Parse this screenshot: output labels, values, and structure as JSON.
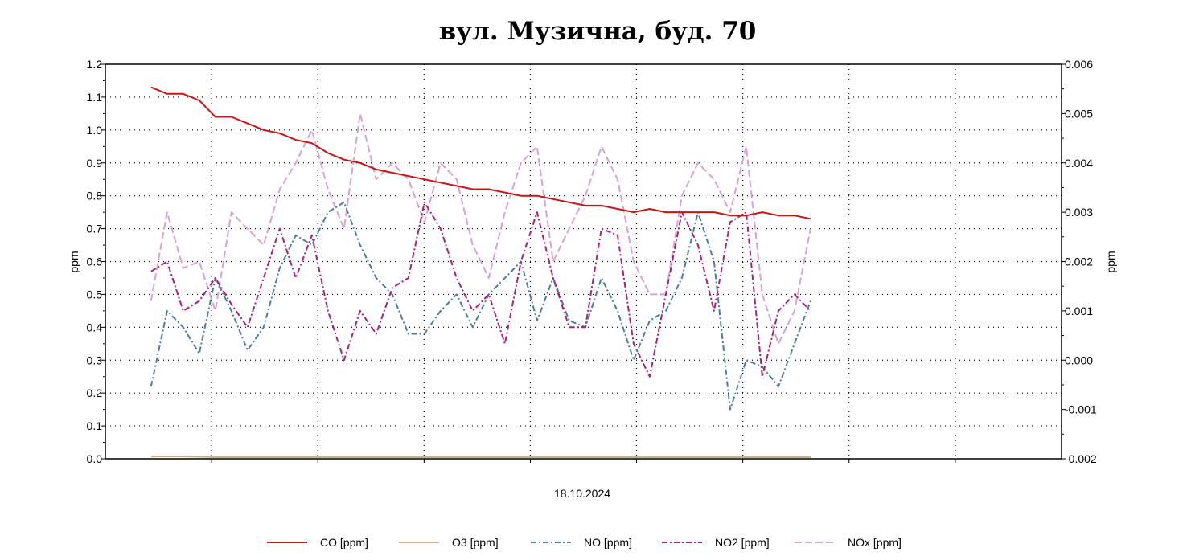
{
  "chart_data": {
    "type": "line",
    "title": "вул. Музична, буд. 70",
    "xlabel": "18.10.2024",
    "ylabel_left": "ppm",
    "ylabel_right": "ppm",
    "ylim_left": [
      0,
      1.2
    ],
    "ylim_right": [
      -0.002,
      0.006
    ],
    "yticks_left": [
      "0.0",
      "0.1",
      "0.2",
      "0.3",
      "0.4",
      "0.5",
      "0.6",
      "0.7",
      "0.8",
      "0.9",
      "1.0",
      "1.1",
      "1.2"
    ],
    "yticks_right": [
      "-0.002",
      "-0.001",
      "0.000",
      "0.001",
      "0.002",
      "0.003",
      "0.004",
      "0.005",
      "0.006"
    ],
    "xlim": [
      0,
      9
    ],
    "x_start": 0.43,
    "x_step": 0.1514,
    "grid": true,
    "legend_position": "bottom",
    "series": [
      {
        "name": "CO [ppm]",
        "color": "#cc1414",
        "dash": "",
        "values": [
          1.13,
          1.11,
          1.11,
          1.09,
          1.04,
          1.04,
          1.02,
          1.0,
          0.99,
          0.97,
          0.96,
          0.93,
          0.91,
          0.9,
          0.88,
          0.87,
          0.86,
          0.85,
          0.84,
          0.83,
          0.82,
          0.82,
          0.81,
          0.8,
          0.8,
          0.79,
          0.78,
          0.77,
          0.77,
          0.76,
          0.75,
          0.76,
          0.75,
          0.75,
          0.75,
          0.75,
          0.74,
          0.74,
          0.75,
          0.74,
          0.74,
          0.73
        ]
      },
      {
        "name": "O3 [ppm]",
        "color": "#c8b08c",
        "dash": "",
        "values": [
          0.007,
          0.007,
          0.007,
          0.006,
          0.005,
          0.005,
          0.005,
          0.005,
          0.005,
          0.005,
          0.005,
          0.005,
          0.005,
          0.005,
          0.005,
          0.005,
          0.005,
          0.005,
          0.005,
          0.005,
          0.005,
          0.005,
          0.005,
          0.005,
          0.005,
          0.005,
          0.005,
          0.005,
          0.005,
          0.005,
          0.005,
          0.005,
          0.005,
          0.005,
          0.005,
          0.005,
          0.005,
          0.005,
          0.005,
          0.005,
          0.005,
          0.005
        ]
      },
      {
        "name": "NO [ppm]",
        "color": "#4a7f9c",
        "dash": "7,3,2,3",
        "values": [
          0.22,
          0.45,
          0.4,
          0.32,
          0.55,
          0.45,
          0.33,
          0.4,
          0.58,
          0.68,
          0.65,
          0.75,
          0.78,
          0.65,
          0.55,
          0.5,
          0.38,
          0.38,
          0.45,
          0.5,
          0.4,
          0.5,
          0.55,
          0.6,
          0.42,
          0.55,
          0.42,
          0.4,
          0.55,
          0.45,
          0.3,
          0.42,
          0.45,
          0.55,
          0.75,
          0.6,
          0.15,
          0.3,
          0.28,
          0.22,
          0.35,
          0.48
        ]
      },
      {
        "name": "NO2 [ppm]",
        "color": "#a82080",
        "dash": "7,3,2,3",
        "values": [
          0.57,
          0.6,
          0.45,
          0.48,
          0.55,
          0.47,
          0.4,
          0.55,
          0.7,
          0.55,
          0.68,
          0.45,
          0.3,
          0.45,
          0.38,
          0.52,
          0.55,
          0.78,
          0.7,
          0.55,
          0.45,
          0.5,
          0.35,
          0.6,
          0.75,
          0.55,
          0.4,
          0.4,
          0.7,
          0.68,
          0.35,
          0.25,
          0.5,
          0.75,
          0.65,
          0.45,
          0.72,
          0.75,
          0.25,
          0.45,
          0.5,
          0.45
        ]
      },
      {
        "name": "NOx [ppm]",
        "color": "#d8a2d2",
        "dash": "9,4",
        "values": [
          0.48,
          0.75,
          0.58,
          0.6,
          0.45,
          0.75,
          0.7,
          0.65,
          0.82,
          0.9,
          1.0,
          0.82,
          0.7,
          1.05,
          0.85,
          0.9,
          0.85,
          0.72,
          0.9,
          0.85,
          0.65,
          0.55,
          0.75,
          0.9,
          0.95,
          0.6,
          0.7,
          0.8,
          0.95,
          0.85,
          0.6,
          0.5,
          0.5,
          0.8,
          0.9,
          0.85,
          0.75,
          0.95,
          0.5,
          0.35,
          0.45,
          0.7
        ]
      }
    ]
  }
}
